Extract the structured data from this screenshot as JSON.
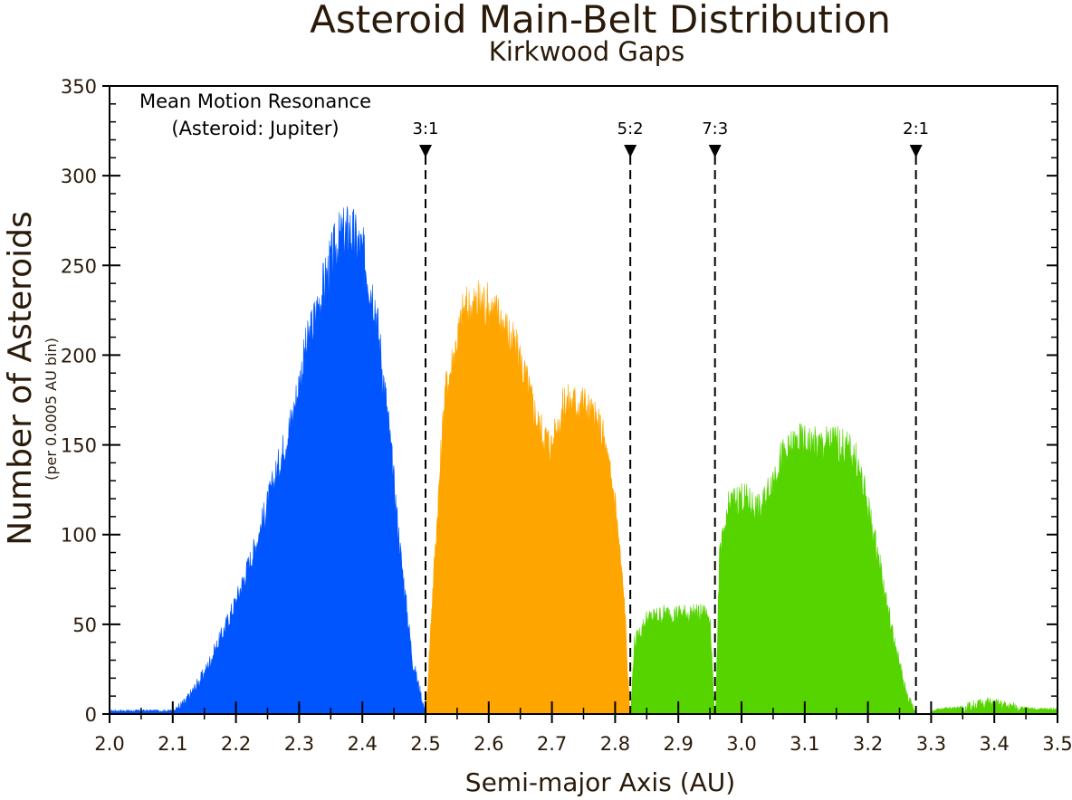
{
  "chart_data": {
    "type": "bar",
    "title": "Asteroid Main-Belt Distribution",
    "subtitle": "Kirkwood Gaps",
    "xlabel": "Semi-major Axis (AU)",
    "ylabel": "Number of Asteroids",
    "ylabel_sub": "(per 0.0005 AU bin)",
    "xlim": [
      2.0,
      3.5
    ],
    "ylim": [
      0,
      350
    ],
    "x_ticks": [
      2.0,
      2.1,
      2.2,
      2.3,
      2.4,
      2.5,
      2.6,
      2.7,
      2.8,
      2.9,
      3.0,
      3.1,
      3.2,
      3.3,
      3.4,
      3.5
    ],
    "x_tick_labels": [
      "2.0",
      "2.1",
      "2.2",
      "2.3",
      "2.4",
      "2.5",
      "2.6",
      "2.7",
      "2.8",
      "2.9",
      "3.0",
      "3.1",
      "3.2",
      "3.3",
      "3.4",
      "3.5"
    ],
    "y_ticks": [
      0,
      50,
      100,
      150,
      200,
      250,
      300,
      350
    ],
    "y_tick_labels": [
      "0",
      "50",
      "100",
      "150",
      "200",
      "250",
      "300",
      "350"
    ],
    "grid": false,
    "legend": "none",
    "annotation_title": [
      "Mean Motion Resonance",
      "(Asteroid: Jupiter)"
    ],
    "resonances": [
      {
        "label": "3:1",
        "x": 2.5
      },
      {
        "label": "5:2",
        "x": 2.824
      },
      {
        "label": "7:3",
        "x": 2.958
      },
      {
        "label": "2:1",
        "x": 3.276
      }
    ],
    "series": [
      {
        "color": "#0055ff",
        "points": [
          [
            2.0,
            1
          ],
          [
            2.1,
            1
          ],
          [
            2.12,
            6
          ],
          [
            2.15,
            22
          ],
          [
            2.18,
            45
          ],
          [
            2.2,
            62
          ],
          [
            2.23,
            92
          ],
          [
            2.26,
            128
          ],
          [
            2.29,
            165
          ],
          [
            2.31,
            200
          ],
          [
            2.34,
            238
          ],
          [
            2.36,
            260
          ],
          [
            2.38,
            268
          ],
          [
            2.4,
            255
          ],
          [
            2.42,
            228
          ],
          [
            2.44,
            165
          ],
          [
            2.46,
            90
          ],
          [
            2.48,
            28
          ],
          [
            2.5,
            0
          ]
        ]
      },
      {
        "color": "#ffa500",
        "points": [
          [
            2.501,
            0
          ],
          [
            2.51,
            60
          ],
          [
            2.53,
            175
          ],
          [
            2.56,
            222
          ],
          [
            2.59,
            228
          ],
          [
            2.62,
            218
          ],
          [
            2.65,
            195
          ],
          [
            2.68,
            158
          ],
          [
            2.7,
            148
          ],
          [
            2.72,
            172
          ],
          [
            2.75,
            172
          ],
          [
            2.78,
            155
          ],
          [
            2.8,
            118
          ],
          [
            2.815,
            60
          ],
          [
            2.823,
            0
          ]
        ]
      },
      {
        "color": "#55d400",
        "points": [
          [
            2.825,
            0
          ],
          [
            2.83,
            38
          ],
          [
            2.85,
            52
          ],
          [
            2.88,
            55
          ],
          [
            2.92,
            55
          ],
          [
            2.95,
            55
          ],
          [
            2.957,
            0
          ],
          [
            2.959,
            0
          ],
          [
            2.965,
            85
          ],
          [
            2.98,
            115
          ],
          [
            3.0,
            120
          ],
          [
            3.03,
            112
          ],
          [
            3.06,
            140
          ],
          [
            3.09,
            150
          ],
          [
            3.12,
            148
          ],
          [
            3.15,
            150
          ],
          [
            3.18,
            142
          ],
          [
            3.2,
            115
          ],
          [
            3.22,
            80
          ],
          [
            3.24,
            42
          ],
          [
            3.26,
            12
          ],
          [
            3.275,
            0
          ]
        ]
      },
      {
        "color": "#55d400",
        "points": [
          [
            3.3,
            0
          ],
          [
            3.31,
            2
          ],
          [
            3.35,
            3
          ],
          [
            3.39,
            6
          ],
          [
            3.42,
            4
          ],
          [
            3.46,
            2
          ],
          [
            3.5,
            2
          ]
        ]
      }
    ]
  }
}
